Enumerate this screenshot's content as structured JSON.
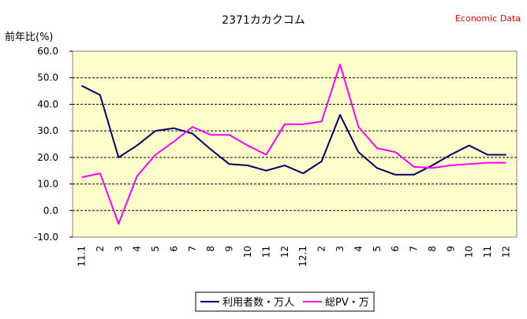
{
  "chart_data": {
    "type": "line",
    "title": "2371カカクコム",
    "source_label": "Economic Data",
    "ylabel": "前年比(%)",
    "xlabel": "",
    "ylim": [
      -10,
      60
    ],
    "yticks": [
      "60.0",
      "50.0",
      "40.0",
      "30.0",
      "20.0",
      "10.0",
      "0.0",
      "-10.0"
    ],
    "grid": true,
    "legend_position": "bottom",
    "categories": [
      "11.1",
      "2",
      "3",
      "4",
      "5",
      "6",
      "7",
      "8",
      "9",
      "10",
      "11",
      "12",
      "12.1",
      "2",
      "3",
      "4",
      "5",
      "6",
      "7",
      "8",
      "9",
      "10",
      "11",
      "12"
    ],
    "series": [
      {
        "name": "利用者数・万人",
        "color": "#000066",
        "values": [
          47,
          43.5,
          20,
          24.5,
          30,
          31,
          29,
          23,
          17.5,
          17,
          15,
          17,
          14,
          18.5,
          36,
          22,
          16,
          13.5,
          13.5,
          17,
          21,
          24.5,
          21,
          21
        ]
      },
      {
        "name": "総PV・万",
        "color": "#ff00ff",
        "values": [
          12.5,
          14,
          -5,
          13,
          21,
          26,
          31.5,
          28.5,
          28.5,
          24.5,
          21,
          32.5,
          32.5,
          33.5,
          55,
          31.5,
          23.5,
          22,
          16.5,
          16,
          17,
          17.5,
          18,
          18
        ]
      }
    ]
  }
}
